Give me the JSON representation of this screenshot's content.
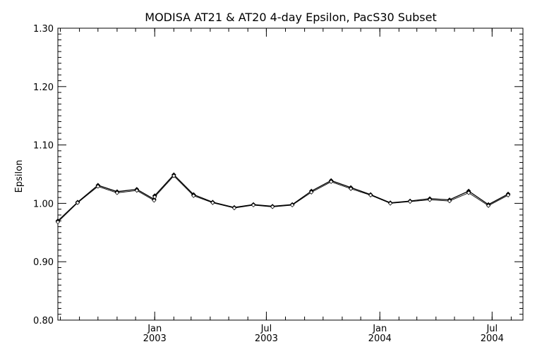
{
  "chart_data": {
    "type": "line",
    "title": "MODISA AT21 & AT20 4-day Epsilon, PacS30 Subset",
    "xlabel": "",
    "ylabel": "Epsilon",
    "ylim": [
      0.8,
      1.3
    ],
    "yticks": [
      "1.30",
      "1.20",
      "1.10",
      "1.00",
      "0.90",
      "0.80"
    ],
    "xlim": [
      "2002-07-28",
      "2004-08-20"
    ],
    "xticks": [
      {
        "date": "2003-01-01",
        "month": "Jan",
        "year": "2003"
      },
      {
        "date": "2003-07-01",
        "month": "Jul",
        "year": "2003"
      },
      {
        "date": "2004-01-01",
        "month": "Jan",
        "year": "2004"
      },
      {
        "date": "2004-07-01",
        "month": "Jul",
        "year": "2004"
      }
    ],
    "grid": false,
    "series": [
      {
        "marker": "diamond-filled",
        "points": [
          [
            "2002-07-28",
            0.97
          ],
          [
            "2002-08-29",
            1.002
          ],
          [
            "2002-10-01",
            1.031
          ],
          [
            "2002-11-01",
            1.02
          ],
          [
            "2002-12-03",
            1.024
          ],
          [
            "2002-12-31",
            1.007
          ],
          [
            "2003-01-01",
            1.013
          ],
          [
            "2003-02-01",
            1.049
          ],
          [
            "2003-03-05",
            1.015
          ],
          [
            "2003-04-05",
            1.002
          ],
          [
            "2003-05-10",
            0.993
          ],
          [
            "2003-06-10",
            0.998
          ],
          [
            "2003-07-11",
            0.995
          ],
          [
            "2003-08-12",
            0.998
          ],
          [
            "2003-09-12",
            1.021
          ],
          [
            "2003-10-14",
            1.039
          ],
          [
            "2003-11-15",
            1.027
          ],
          [
            "2003-12-17",
            1.015
          ],
          [
            "2004-01-18",
            1.001
          ],
          [
            "2004-02-19",
            1.004
          ],
          [
            "2004-03-22",
            1.008
          ],
          [
            "2004-04-23",
            1.006
          ],
          [
            "2004-05-24",
            1.021
          ],
          [
            "2004-06-25",
            0.998
          ],
          [
            "2004-07-27",
            1.016
          ]
        ]
      },
      {
        "marker": "diamond-open",
        "points": [
          [
            "2002-07-28",
            0.968
          ],
          [
            "2002-08-29",
            1.001
          ],
          [
            "2002-10-01",
            1.029
          ],
          [
            "2002-11-01",
            1.018
          ],
          [
            "2002-12-03",
            1.022
          ],
          [
            "2002-12-31",
            1.005
          ],
          [
            "2003-01-01",
            1.011
          ],
          [
            "2003-02-01",
            1.047
          ],
          [
            "2003-03-05",
            1.013
          ],
          [
            "2003-04-05",
            1.001
          ],
          [
            "2003-05-10",
            0.992
          ],
          [
            "2003-06-10",
            0.997
          ],
          [
            "2003-07-11",
            0.994
          ],
          [
            "2003-08-12",
            0.997
          ],
          [
            "2003-09-12",
            1.019
          ],
          [
            "2003-10-14",
            1.037
          ],
          [
            "2003-11-15",
            1.025
          ],
          [
            "2003-12-17",
            1.014
          ],
          [
            "2004-01-18",
            1.0
          ],
          [
            "2004-02-19",
            1.003
          ],
          [
            "2004-03-22",
            1.006
          ],
          [
            "2004-04-23",
            1.004
          ],
          [
            "2004-05-24",
            1.018
          ],
          [
            "2004-06-25",
            0.996
          ],
          [
            "2004-07-27",
            1.014
          ]
        ]
      }
    ],
    "colors": {
      "background": "#ffffff",
      "line": "#000000"
    }
  }
}
